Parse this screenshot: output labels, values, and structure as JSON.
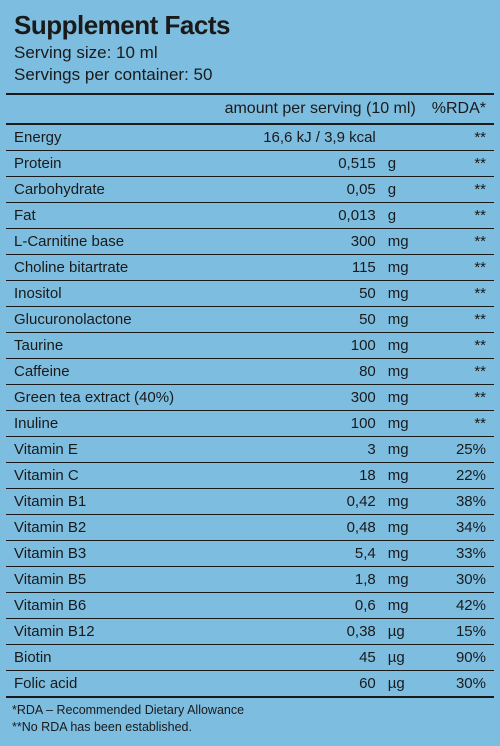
{
  "panel": {
    "background_color": "#7dbde0",
    "border_color": "#1a1a1a",
    "text_color": "#1a1a1a"
  },
  "header": {
    "title": "Supplement Facts",
    "serving_size_label": "Serving size: 10 ml",
    "servings_per_container_label": "Servings per container: 50"
  },
  "columns": {
    "name": "",
    "amount": "amount per serving (10 ml)",
    "rda": "%RDA*"
  },
  "rows": [
    {
      "name": "Energy",
      "amount": "16,6 kJ / 3,9 kcal",
      "unit": "",
      "rda": "**"
    },
    {
      "name": "Protein",
      "amount": "0,515",
      "unit": "g",
      "rda": "**"
    },
    {
      "name": "Carbohydrate",
      "amount": "0,05",
      "unit": "g",
      "rda": "**"
    },
    {
      "name": "Fat",
      "amount": "0,013",
      "unit": "g",
      "rda": "**"
    },
    {
      "name": "L-Carnitine base",
      "amount": "300",
      "unit": "mg",
      "rda": "**"
    },
    {
      "name": "Choline bitartrate",
      "amount": "115",
      "unit": "mg",
      "rda": "**"
    },
    {
      "name": "Inositol",
      "amount": "50",
      "unit": "mg",
      "rda": "**"
    },
    {
      "name": "Glucuronolactone",
      "amount": "50",
      "unit": "mg",
      "rda": "**"
    },
    {
      "name": "Taurine",
      "amount": "100",
      "unit": "mg",
      "rda": "**"
    },
    {
      "name": "Caffeine",
      "amount": "80",
      "unit": "mg",
      "rda": "**"
    },
    {
      "name": "Green tea extract (40%)",
      "amount": "300",
      "unit": "mg",
      "rda": "**"
    },
    {
      "name": "Inuline",
      "amount": "100",
      "unit": "mg",
      "rda": "**"
    },
    {
      "name": "Vitamin E",
      "amount": "3",
      "unit": "mg",
      "rda": "25%"
    },
    {
      "name": "Vitamin C",
      "amount": "18",
      "unit": "mg",
      "rda": "22%"
    },
    {
      "name": "Vitamin B1",
      "amount": "0,42",
      "unit": "mg",
      "rda": "38%"
    },
    {
      "name": "Vitamin B2",
      "amount": "0,48",
      "unit": "mg",
      "rda": "34%"
    },
    {
      "name": "Vitamin B3",
      "amount": "5,4",
      "unit": "mg",
      "rda": "33%"
    },
    {
      "name": "Vitamin B5",
      "amount": "1,8",
      "unit": "mg",
      "rda": "30%"
    },
    {
      "name": "Vitamin B6",
      "amount": "0,6",
      "unit": "mg",
      "rda": "42%"
    },
    {
      "name": "Vitamin B12",
      "amount": "0,38",
      "unit": "µg",
      "rda": "15%"
    },
    {
      "name": "Biotin",
      "amount": "45",
      "unit": "µg",
      "rda": "90%"
    },
    {
      "name": "Folic acid",
      "amount": "60",
      "unit": "µg",
      "rda": "30%"
    }
  ],
  "footnotes": {
    "line1": "*RDA – Recommended Dietary Allowance",
    "line2": "**No RDA has been established."
  }
}
